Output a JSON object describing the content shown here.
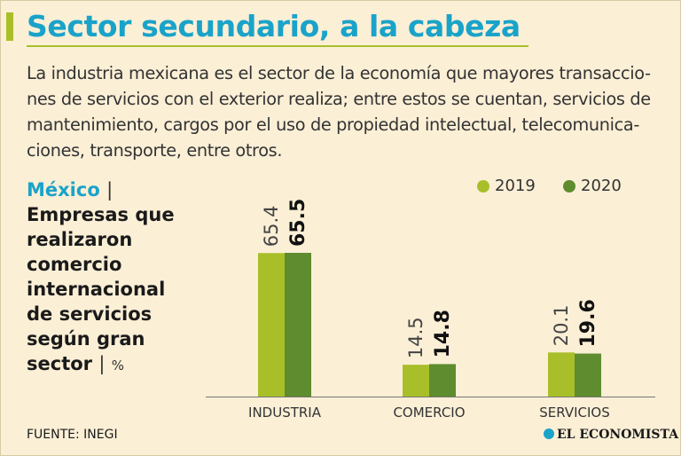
{
  "header": {
    "title": "Sector secundario, a la cabeza",
    "intro_lines": [
      "La industria mexicana es el sector de la economía que mayores transaccio-",
      "nes de servicios con el exterior realiza; entre estos se cuentan, servicios de",
      "mantenimiento, cargos por el uso de propiedad intelectual, telecomunica-",
      "ciones, transporte, entre otros."
    ]
  },
  "side_label": {
    "country": "México",
    "separator": "|",
    "lines": [
      "Empresas que",
      "realizaron",
      "comercio",
      "internacional",
      "de servicios",
      "según gran"
    ],
    "last_line": "sector",
    "unit": "%"
  },
  "footer": {
    "source": "FUENTE: INEGI",
    "brand": "EL ECONOMISTA"
  },
  "colors": {
    "accent_blue": "#1aa3c9",
    "accent_lime": "#a9bf2a",
    "series_2019": "#a9bf2a",
    "series_2020": "#5e8c2e",
    "background": "#fbefd6"
  },
  "chart_data": {
    "type": "bar",
    "categories": [
      "INDUSTRIA",
      "COMERCIO",
      "SERVICIOS"
    ],
    "series": [
      {
        "name": "2019",
        "values": [
          65.4,
          14.5,
          20.1
        ]
      },
      {
        "name": "2020",
        "values": [
          65.5,
          14.8,
          19.6
        ]
      }
    ],
    "value_labels": [
      [
        "65.4",
        "14.5",
        "20.1"
      ],
      [
        "65.5",
        "14.8",
        "19.6"
      ]
    ],
    "title": "",
    "xlabel": "",
    "ylabel": "",
    "ylim": [
      0,
      65.5
    ],
    "grid": false,
    "legend": "top-right"
  }
}
